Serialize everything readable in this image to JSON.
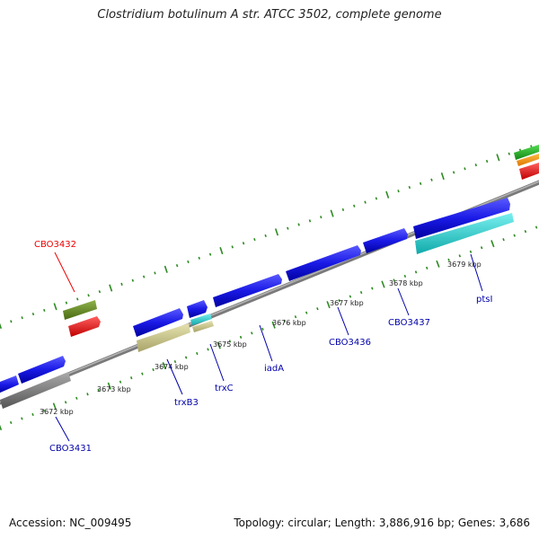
{
  "title": "Clostridium botulinum A str. ATCC 3502, complete genome",
  "footer": {
    "accession": "Accession: NC_009495",
    "summary": "Topology: circular; Length: 3,886,916 bp; Genes: 3,686"
  },
  "ruler": {
    "tick_labels": [
      "3672 kbp",
      "3673 kbp",
      "3674 kbp",
      "3675 kbp",
      "3676 kbp",
      "3677 kbp",
      "3678 kbp",
      "3679 kbp"
    ]
  },
  "gene_labels": [
    {
      "name": "CBO3432",
      "color": "#ee0000"
    },
    {
      "name": "CBO3431",
      "color": "#0000aa"
    },
    {
      "name": "trxB3",
      "color": "#0000aa"
    },
    {
      "name": "trxC",
      "color": "#0000aa"
    },
    {
      "name": "iadA",
      "color": "#0000aa"
    },
    {
      "name": "CBO3436",
      "color": "#0000aa"
    },
    {
      "name": "CBO3437",
      "color": "#0000aa"
    },
    {
      "name": "ptsI",
      "color": "#0000aa"
    }
  ],
  "colors": {
    "backbone": "#8c8c8c",
    "tick_green": "#2e8b22",
    "cds_blue": "#1a1ae6",
    "cds_khaki": "#c8c48a",
    "cds_cyan": "#22cccc",
    "cds_olive": "#6b8e23",
    "cds_red": "#ee1111",
    "cds_gray": "#777777",
    "cds_green": "#22bb22",
    "cds_orange": "#ff9900"
  }
}
